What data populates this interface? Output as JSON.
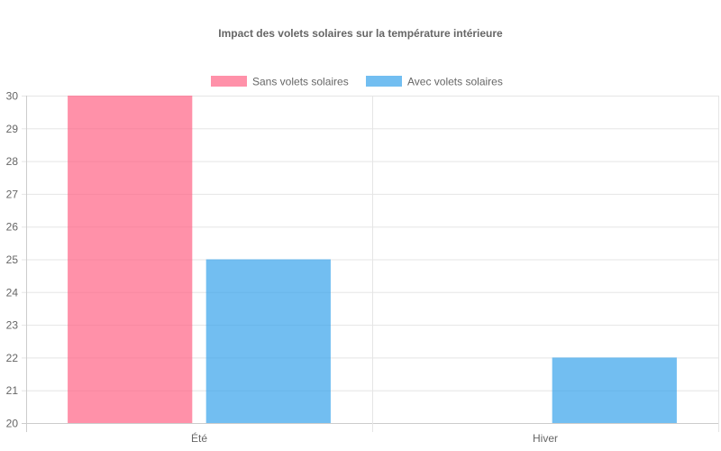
{
  "chart_data": {
    "type": "bar",
    "title": "Impact des volets solaires sur la température intérieure",
    "categories": [
      "Été",
      "Hiver"
    ],
    "series": [
      {
        "name": "Sans volets solaires",
        "values": [
          30,
          null
        ],
        "color": "#ff6384"
      },
      {
        "name": "Avec volets solaires",
        "values": [
          25,
          22
        ],
        "color": "#36a2eb"
      }
    ],
    "ylim": [
      20,
      30
    ],
    "yticks": [
      20,
      21,
      22,
      23,
      24,
      25,
      26,
      27,
      28,
      29,
      30
    ],
    "grid": true,
    "legend_position": "top"
  }
}
